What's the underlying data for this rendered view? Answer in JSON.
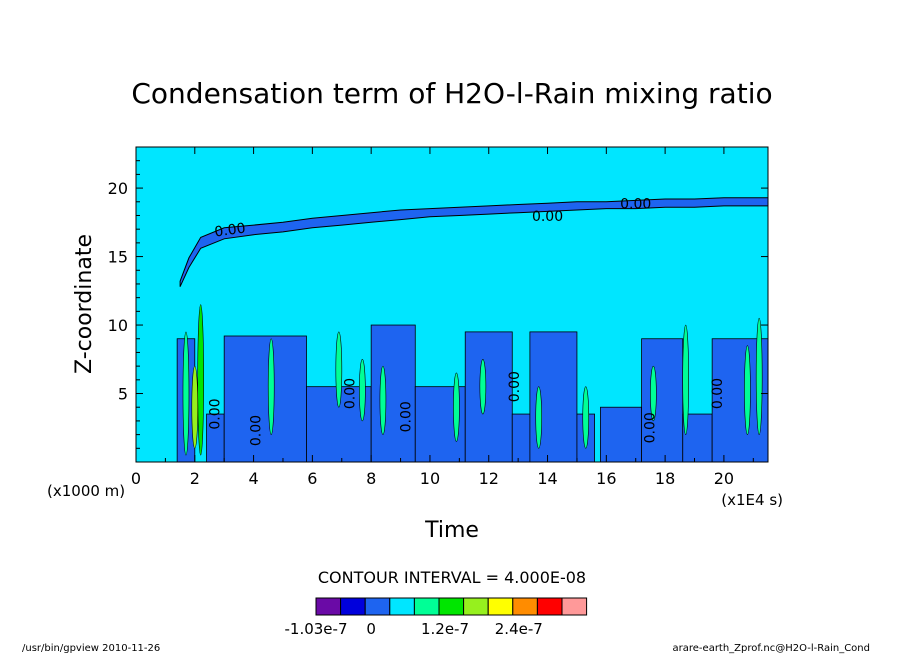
{
  "chart_data": {
    "type": "heatmap",
    "title": "Condensation term of H2O-l-Rain mixing ratio",
    "xlabel": "Time",
    "ylabel": "Z-coordinate",
    "x_unit_label": "(x1E4 s)",
    "y_unit_label": "(x1000 m)",
    "xlim": [
      0,
      21.5
    ],
    "ylim": [
      0,
      23
    ],
    "x_ticks": [
      0,
      2,
      4,
      6,
      8,
      10,
      12,
      14,
      16,
      18,
      20
    ],
    "y_ticks": [
      5,
      10,
      15,
      20
    ],
    "contour_interval_text": "CONTOUR INTERVAL = 4.000E-08",
    "colorbar": {
      "colors": [
        "#6a0aa6",
        "#0000dc",
        "#1e64f0",
        "#00e6ff",
        "#00ff96",
        "#00e600",
        "#96f01e",
        "#ffff00",
        "#ff8c00",
        "#ff0000",
        "#ff9999"
      ],
      "labels": [
        "-1.03e-7",
        "0",
        "1.2e-7",
        "2.4e-7"
      ],
      "label_box_index": [
        0,
        2,
        5,
        8
      ]
    },
    "background_level_color": "#00e6ff",
    "negative_level_color": "#1e64f0",
    "contour_labels": [
      {
        "text": "0.00",
        "x": 3.2,
        "y": 16.9,
        "rot": -8
      },
      {
        "text": "0.00",
        "x": 17.0,
        "y": 18.8,
        "rot": 0
      },
      {
        "text": "0.00",
        "x": 14.0,
        "y": 17.9,
        "rot": 0
      },
      {
        "text": "0.00",
        "x": 2.7,
        "y": 3.5,
        "rot": -90
      },
      {
        "text": "0.00",
        "x": 4.1,
        "y": 2.3,
        "rot": -90
      },
      {
        "text": "0.00",
        "x": 7.3,
        "y": 5.0,
        "rot": -90
      },
      {
        "text": "0.00",
        "x": 9.2,
        "y": 3.3,
        "rot": -90
      },
      {
        "text": "0.00",
        "x": 12.9,
        "y": 5.5,
        "rot": -90
      },
      {
        "text": "0.00",
        "x": 17.5,
        "y": 2.5,
        "rot": -90
      },
      {
        "text": "0.00",
        "x": 19.8,
        "y": 5.0,
        "rot": -90
      }
    ],
    "upper_negative_band": [
      [
        1.5,
        12.8,
        13.2
      ],
      [
        1.8,
        14.2,
        14.9
      ],
      [
        2.2,
        15.6,
        16.4
      ],
      [
        3.0,
        16.3,
        17.1
      ],
      [
        4.0,
        16.6,
        17.3
      ],
      [
        5.0,
        16.8,
        17.5
      ],
      [
        6.0,
        17.1,
        17.8
      ],
      [
        7.0,
        17.3,
        18.0
      ],
      [
        8.0,
        17.5,
        18.2
      ],
      [
        9.0,
        17.7,
        18.4
      ],
      [
        10.0,
        17.9,
        18.5
      ],
      [
        11.0,
        18.0,
        18.6
      ],
      [
        12.0,
        18.1,
        18.7
      ],
      [
        13.0,
        18.2,
        18.8
      ],
      [
        14.0,
        18.3,
        18.9
      ],
      [
        15.0,
        18.4,
        19.0
      ],
      [
        16.0,
        18.5,
        19.0
      ],
      [
        17.0,
        18.5,
        19.1
      ],
      [
        18.0,
        18.6,
        19.2
      ],
      [
        19.0,
        18.6,
        19.2
      ],
      [
        20.0,
        18.7,
        19.3
      ],
      [
        21.5,
        18.7,
        19.3
      ]
    ],
    "lower_negative_cells": [
      [
        1.4,
        2.0,
        0,
        9.0
      ],
      [
        2.4,
        3.0,
        0,
        3.5
      ],
      [
        3.0,
        5.8,
        0,
        9.2
      ],
      [
        5.8,
        8.0,
        0,
        5.5
      ],
      [
        8.0,
        9.5,
        0,
        10.0
      ],
      [
        9.5,
        11.2,
        0,
        5.5
      ],
      [
        11.2,
        12.8,
        0,
        9.5
      ],
      [
        12.8,
        13.4,
        0,
        3.5
      ],
      [
        13.4,
        15.0,
        0,
        9.5
      ],
      [
        15.0,
        15.6,
        0,
        3.5
      ],
      [
        15.8,
        17.2,
        0,
        4.0
      ],
      [
        17.2,
        18.6,
        0,
        9.0
      ],
      [
        18.6,
        19.6,
        0,
        3.5
      ],
      [
        19.6,
        21.5,
        0,
        9.0
      ]
    ],
    "positive_streaks": [
      [
        1.7,
        0.5,
        9.5,
        "#00ff96"
      ],
      [
        2.2,
        0.5,
        11.5,
        "#00e600"
      ],
      [
        2.0,
        1.0,
        7.0,
        "#96f01e"
      ],
      [
        4.6,
        2.0,
        9.0,
        "#00ff96"
      ],
      [
        6.9,
        4.0,
        9.5,
        "#00ff96"
      ],
      [
        7.7,
        3.0,
        7.5,
        "#00ff96"
      ],
      [
        8.4,
        2.0,
        7.0,
        "#00ff96"
      ],
      [
        10.9,
        1.5,
        6.5,
        "#00ff96"
      ],
      [
        11.8,
        3.5,
        7.5,
        "#00ff96"
      ],
      [
        13.7,
        1.0,
        5.5,
        "#00ff96"
      ],
      [
        15.3,
        1.0,
        5.5,
        "#00ff96"
      ],
      [
        17.6,
        3.0,
        7.0,
        "#00ff96"
      ],
      [
        18.7,
        2.0,
        10.0,
        "#00ff96"
      ],
      [
        20.8,
        2.0,
        8.5,
        "#00ff96"
      ],
      [
        21.2,
        2.0,
        10.5,
        "#00ff96"
      ]
    ]
  },
  "footer": {
    "left": "/usr/bin/gpview  2010-11-26",
    "right": "arare-earth_Zprof.nc@H2O-l-Rain_Cond"
  }
}
